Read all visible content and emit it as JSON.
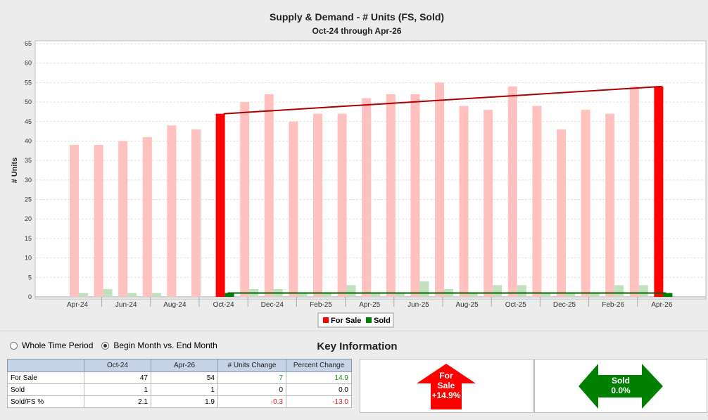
{
  "chart_data": {
    "type": "bar",
    "title": "Supply & Demand - # Units (FS, Sold)",
    "subtitle": "Oct-24 through Apr-26",
    "ylabel": "# Units",
    "xlabel": "",
    "ylim": [
      0,
      65
    ],
    "yticks": [
      0,
      5,
      10,
      15,
      20,
      25,
      30,
      35,
      40,
      45,
      50,
      55,
      60,
      65
    ],
    "x_tick_labels": [
      "Apr-24",
      "Jun-24",
      "Aug-24",
      "Oct-24",
      "Dec-24",
      "Feb-25",
      "Apr-25",
      "Jun-25",
      "Aug-25",
      "Oct-25",
      "Dec-25",
      "Feb-26",
      "Apr-26"
    ],
    "categories": [
      "Apr-24",
      "May-24",
      "Jun-24",
      "Jul-24",
      "Aug-24",
      "Sep-24",
      "Oct-24",
      "Nov-24",
      "Dec-24",
      "Jan-25",
      "Feb-25",
      "Mar-25",
      "Apr-25",
      "May-25",
      "Jun-25",
      "Jul-25",
      "Aug-25",
      "Sep-25",
      "Oct-25",
      "Nov-25",
      "Dec-25",
      "Jan-26",
      "Feb-26",
      "Mar-26",
      "Apr-26"
    ],
    "series": [
      {
        "name": "For Sale",
        "values": [
          39,
          39,
          40,
          41,
          44,
          43,
          47,
          50,
          52,
          45,
          47,
          47,
          51,
          52,
          52,
          55,
          49,
          48,
          54,
          49,
          43,
          48,
          47,
          54,
          54
        ]
      },
      {
        "name": "Sold",
        "values": [
          1,
          2,
          1,
          1,
          0,
          0,
          1,
          2,
          2,
          1,
          1,
          3,
          1,
          1,
          4,
          2,
          1,
          3,
          3,
          1,
          1,
          1,
          3,
          3,
          1
        ]
      }
    ],
    "highlight_indices": [
      6,
      24
    ],
    "trend_lines": [
      {
        "series": "For Sale",
        "from": "Oct-24",
        "to": "Apr-26",
        "start": 47,
        "end": 54
      },
      {
        "series": "Sold",
        "from": "Oct-24",
        "to": "Apr-26",
        "start": 1,
        "end": 1
      }
    ],
    "legend": {
      "placement": "bottom",
      "entries": [
        "For Sale",
        "Sold"
      ]
    },
    "grid": true,
    "colors": {
      "for_sale": "#ff0000",
      "for_sale_light": "#ffc0c0",
      "sold": "#008000",
      "sold_light": "#c0e0c0",
      "trend_fs": "#aa0000",
      "trend_sold": "#006400"
    }
  },
  "controls": {
    "options": [
      {
        "label": "Whole Time Period",
        "selected": false
      },
      {
        "label": "Begin Month vs. End Month",
        "selected": true
      }
    ]
  },
  "key_info": {
    "title": "Key Information",
    "headers": [
      "",
      "Oct-24",
      "Apr-26",
      "# Units Change",
      "Percent Change"
    ],
    "rows": [
      {
        "label": "For Sale",
        "begin": "47",
        "end": "54",
        "change": "7",
        "pct": "14.9",
        "change_class": "pos",
        "pct_class": "pos"
      },
      {
        "label": "Sold",
        "begin": "1",
        "end": "1",
        "change": "0",
        "pct": "0.0",
        "change_class": "",
        "pct_class": ""
      },
      {
        "label": "Sold/FS %",
        "begin": "2.1",
        "end": "1.9",
        "change": "-0.3",
        "pct": "-13.0",
        "change_class": "neg",
        "pct_class": "neg"
      }
    ]
  },
  "for_sale_indicator": {
    "line1": "For",
    "line2": "Sale",
    "line3": "+14.9%",
    "color": "#ff0000"
  },
  "sold_indicator": {
    "line1": "Sold",
    "line2": "0.0%",
    "color": "#008000"
  }
}
